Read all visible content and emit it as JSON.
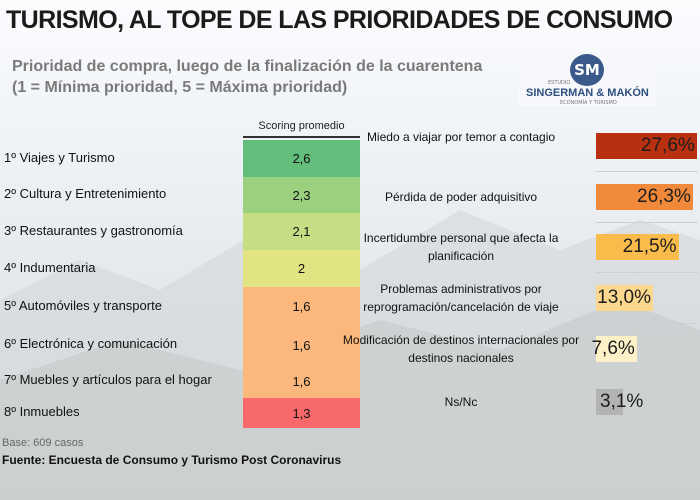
{
  "title": "TURISMO, AL TOPE DE LAS PRIORIDADES DE CONSUMO",
  "subtitle_line1": "Prioridad de compra, luego de la finalización de la cuarentena",
  "subtitle_line2": "(1 = Mínima prioridad, 5 = Máxima prioridad)",
  "logo": {
    "initials": "SM",
    "prefix": "ESTUDIO",
    "name": "SINGERMAN & MAKÓN",
    "tagline": "ECONOMÍA Y TURISMO"
  },
  "chart_data": [
    {
      "type": "table",
      "column_header": "Scoring promedio",
      "categories": [
        "1º  Viajes y Turismo",
        "2º  Cultura y Entretenimiento",
        "3º  Restaurantes y gastronomía",
        "4º  Indumentaria",
        "5º  Automóviles y transporte",
        "6º  Electrónica y comunicación",
        "7º  Muebles y artículos para el hogar",
        "8º  Inmuebles"
      ],
      "values": [
        2.6,
        2.3,
        2.1,
        2,
        1.6,
        1.6,
        1.6,
        1.3
      ],
      "value_labels": [
        "2,6",
        "2,3",
        "2,1",
        "2",
        "1,6",
        "1,6",
        "1,6",
        "1,3"
      ],
      "colors": [
        "#63be7b",
        "#9bd07f",
        "#c7dd83",
        "#e2e383",
        "#fbb77c",
        "#fbb77c",
        "#fbb77c",
        "#f8696b"
      ]
    },
    {
      "type": "bar",
      "categories": [
        "Miedo a viajar por temor a contagio",
        "Pérdida de poder adquisitivo",
        "Incertidumbre personal que afecta la planificación",
        "Problemas administrativos por reprogramación/cancelación de viaje",
        "Modificación de destinos internacionales por destinos nacionales",
        "Ns/Nc"
      ],
      "values": [
        27.6,
        26.3,
        21.5,
        13.0,
        7.6,
        3.1
      ],
      "value_labels": [
        "27,6%",
        "26,3%",
        "21,5%",
        "13,0%",
        "7,6%",
        "3,1%"
      ],
      "colors": [
        "#b8300f",
        "#f08a3a",
        "#f9bb4a",
        "#fcd88e",
        "#fdf1c8",
        "#b3b3b3"
      ]
    }
  ],
  "base": "Base: 609 casos",
  "source": "Fuente: Encuesta de Consumo y Turismo Post Coronavirus"
}
